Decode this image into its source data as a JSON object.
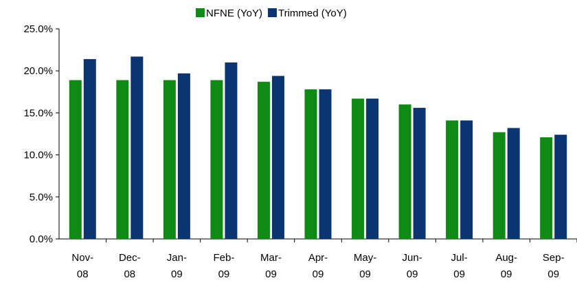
{
  "chart_data": {
    "type": "bar",
    "categories": [
      "Nov-08",
      "Dec-08",
      "Jan-09",
      "Feb-09",
      "Mar-09",
      "Apr-09",
      "May-09",
      "Jun-09",
      "Jul-09",
      "Aug-09",
      "Sep-09"
    ],
    "series": [
      {
        "name": "NFNE (YoY)",
        "color": "#0f8a14",
        "values": [
          18.9,
          18.9,
          18.9,
          18.9,
          18.7,
          17.8,
          16.7,
          16.0,
          14.1,
          12.7,
          12.1
        ]
      },
      {
        "name": "Trimmed (YoY)",
        "color": "#0a3570",
        "values": [
          21.4,
          21.7,
          19.7,
          21.0,
          19.4,
          17.8,
          16.7,
          15.6,
          14.1,
          13.2,
          12.4
        ]
      }
    ],
    "ylim": [
      0,
      25
    ],
    "yticks": [
      {
        "value": 0,
        "label": "0.0%"
      },
      {
        "value": 5,
        "label": "5.0%"
      },
      {
        "value": 10,
        "label": "10.0%"
      },
      {
        "value": 15,
        "label": "15.0%"
      },
      {
        "value": 20,
        "label": "20.0%"
      },
      {
        "value": 25,
        "label": "25.0%"
      }
    ],
    "legend": "top"
  }
}
